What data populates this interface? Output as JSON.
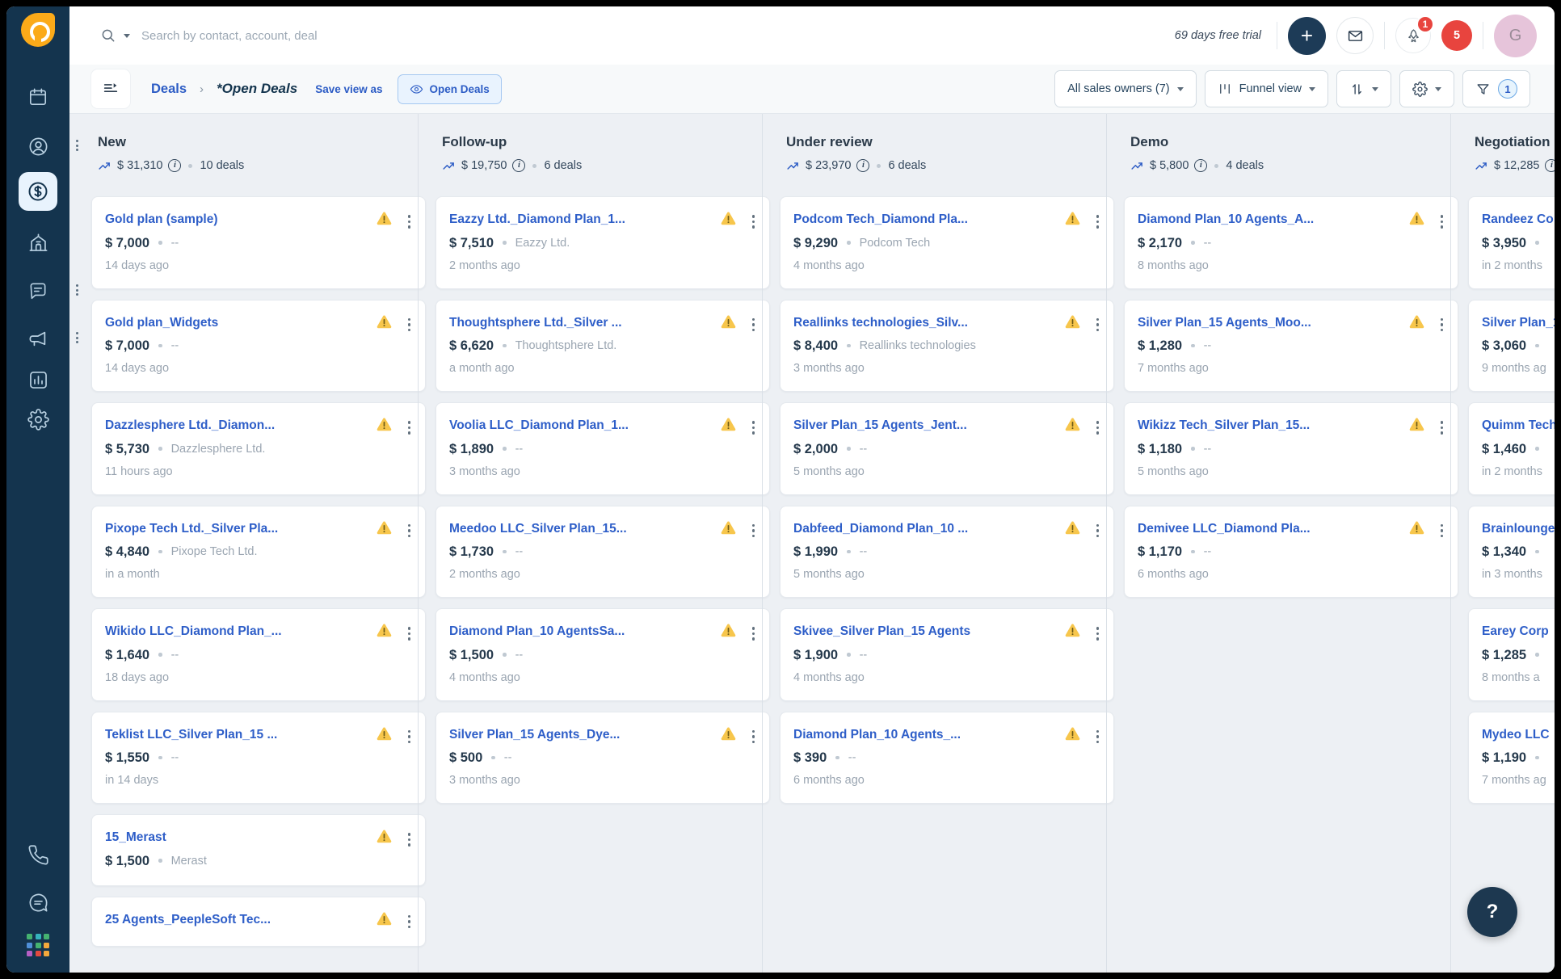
{
  "colors": {
    "brand_orange": "#fbaa19",
    "sidebar_navy": "#14344e",
    "link_blue": "#2c5cc5",
    "warning_yellow": "#f7c64c",
    "badge_red": "#e8443e",
    "avatar_pink": "#e6c4da",
    "board_bg": "#edf0f4"
  },
  "icons": {
    "search": "magnifier",
    "trend": "arrow-trending-up",
    "warning": "triangle-exclamation",
    "menu": "kebab-vertical",
    "info": "circle-i",
    "filter": "funnel",
    "sort": "arrows-up-down",
    "settings": "gear",
    "view_mode": "kanban-bars",
    "help": "question-mark"
  },
  "topbar": {
    "search_placeholder": "Search by contact, account, deal",
    "trial_text": "69 days free trial",
    "add_label": "+",
    "rocket_badge_count": "1",
    "alert_badge_count": "5",
    "avatar_initial": "G"
  },
  "toolbar": {
    "breadcrumb_root": "Deals",
    "breadcrumb_sep": "›",
    "current_view": "*Open Deals",
    "save_view_label": "Save view as",
    "open_deals_button_label": "Open Deals",
    "owners_dropdown_label": "All sales owners (7)",
    "view_mode_label": "Funnel view",
    "filter_badge_count": "1"
  },
  "help_button_label": "?",
  "board": {
    "columns": [
      {
        "title": "New",
        "amount": "$ 31,310",
        "deal_count": "10 deals",
        "cards": [
          {
            "title": "Gold plan (sample)",
            "amount": "$ 7,000",
            "company": "--",
            "date": "14 days ago"
          },
          {
            "title": "Gold plan_Widgets",
            "amount": "$ 7,000",
            "company": "--",
            "date": "14 days ago"
          },
          {
            "title": "Dazzlesphere Ltd._Diamon...",
            "amount": "$ 5,730",
            "company": "Dazzlesphere Ltd.",
            "date": "11 hours ago"
          },
          {
            "title": "Pixope Tech Ltd._Silver Pla...",
            "amount": "$ 4,840",
            "company": "Pixope Tech Ltd.",
            "date": "in a month"
          },
          {
            "title": "Wikido LLC_Diamond Plan_...",
            "amount": "$ 1,640",
            "company": "--",
            "date": "18 days ago"
          },
          {
            "title": "Teklist LLC_Silver Plan_15 ...",
            "amount": "$ 1,550",
            "company": "--",
            "date": "in 14 days"
          },
          {
            "title": "15_Merast",
            "amount": "$ 1,500",
            "company": "Merast",
            "date": ""
          },
          {
            "title": "25 Agents_PeepleSoft Tec...",
            "amount": "",
            "company": "",
            "date": ""
          }
        ]
      },
      {
        "title": "Follow-up",
        "amount": "$ 19,750",
        "deal_count": "6 deals",
        "cards": [
          {
            "title": "Eazzy Ltd._Diamond Plan_1...",
            "amount": "$ 7,510",
            "company": "Eazzy Ltd.",
            "date": "2 months ago"
          },
          {
            "title": "Thoughtsphere Ltd._Silver ...",
            "amount": "$ 6,620",
            "company": "Thoughtsphere Ltd.",
            "date": "a month ago"
          },
          {
            "title": "Voolia LLC_Diamond Plan_1...",
            "amount": "$ 1,890",
            "company": "--",
            "date": "3 months ago"
          },
          {
            "title": "Meedoo LLC_Silver Plan_15...",
            "amount": "$ 1,730",
            "company": "--",
            "date": "2 months ago"
          },
          {
            "title": "Diamond Plan_10 AgentsSa...",
            "amount": "$ 1,500",
            "company": "--",
            "date": "4 months ago"
          },
          {
            "title": "Silver Plan_15 Agents_Dye...",
            "amount": "$ 500",
            "company": "--",
            "date": "3 months ago"
          }
        ]
      },
      {
        "title": "Under review",
        "amount": "$ 23,970",
        "deal_count": "6 deals",
        "cards": [
          {
            "title": "Podcom Tech_Diamond Pla...",
            "amount": "$ 9,290",
            "company": "Podcom Tech",
            "date": "4 months ago"
          },
          {
            "title": "Reallinks technologies_Silv...",
            "amount": "$ 8,400",
            "company": "Reallinks technologies",
            "date": "3 months ago"
          },
          {
            "title": "Silver Plan_15 Agents_Jent...",
            "amount": "$ 2,000",
            "company": "--",
            "date": "5 months ago"
          },
          {
            "title": "Dabfeed_Diamond Plan_10 ...",
            "amount": "$ 1,990",
            "company": "--",
            "date": "5 months ago"
          },
          {
            "title": "Skivee_Silver Plan_15 Agents",
            "amount": "$ 1,900",
            "company": "--",
            "date": "4 months ago"
          },
          {
            "title": "Diamond Plan_10 Agents_...",
            "amount": "$ 390",
            "company": "--",
            "date": "6 months ago"
          }
        ]
      },
      {
        "title": "Demo",
        "amount": "$ 5,800",
        "deal_count": "4 deals",
        "cards": [
          {
            "title": "Diamond Plan_10 Agents_A...",
            "amount": "$ 2,170",
            "company": "--",
            "date": "8 months ago"
          },
          {
            "title": "Silver Plan_15 Agents_Moo...",
            "amount": "$ 1,280",
            "company": "--",
            "date": "7 months ago"
          },
          {
            "title": "Wikizz Tech_Silver Plan_15...",
            "amount": "$ 1,180",
            "company": "--",
            "date": "5 months ago"
          },
          {
            "title": "Demivee LLC_Diamond Pla...",
            "amount": "$ 1,170",
            "company": "--",
            "date": "6 months ago"
          }
        ]
      },
      {
        "title": "Negotiation",
        "amount": "$ 12,285",
        "deal_count": "",
        "cards": [
          {
            "title": "Randeez Co",
            "amount": "$ 3,950",
            "company": "",
            "date": "in 2 months"
          },
          {
            "title": "Silver Plan_1",
            "amount": "$ 3,060",
            "company": "",
            "date": "9 months ag"
          },
          {
            "title": "Quimm Tech",
            "amount": "$ 1,460",
            "company": "",
            "date": "in 2 months"
          },
          {
            "title": "Brainlounge",
            "amount": "$ 1,340",
            "company": "",
            "date": "in 3 months"
          },
          {
            "title": "Earey Corp",
            "amount": "$ 1,285",
            "company": "",
            "date": "8 months a"
          },
          {
            "title": "Mydeo LLC",
            "amount": "$ 1,190",
            "company": "",
            "date": "7 months ag"
          }
        ]
      }
    ]
  }
}
